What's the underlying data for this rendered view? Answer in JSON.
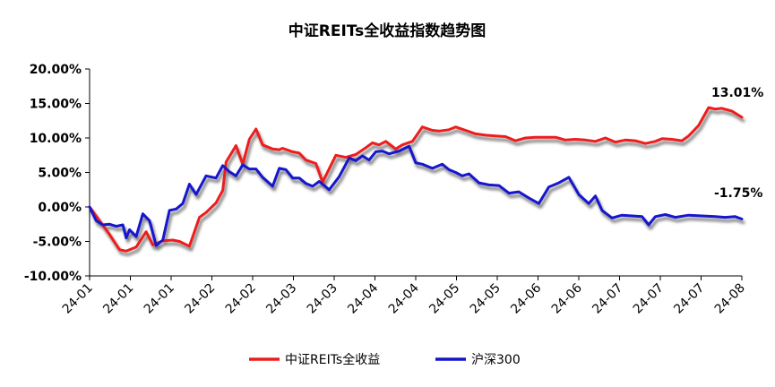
{
  "chart_data": {
    "type": "line",
    "title": "中证REITs全收益指数趋势图",
    "xlabel": "",
    "ylabel": "",
    "ylim": [
      -10,
      20
    ],
    "yticks": [
      "20.00%",
      "15.00%",
      "10.00%",
      "5.00%",
      "0.00%",
      "-5.00%",
      "-10.00%"
    ],
    "xticks": [
      "24-01",
      "24-01",
      "24-01",
      "24-02",
      "24-02",
      "24-03",
      "24-03",
      "24-04",
      "24-04",
      "24-05",
      "24-05",
      "24-06",
      "24-06",
      "24-07",
      "24-07",
      "24-07",
      "24-08"
    ],
    "grid": false,
    "legend_position": "bottom",
    "end_labels": [
      "13.01%",
      "-1.75%"
    ],
    "series": [
      {
        "name": "中证REITs全收益",
        "color": "#ee1c1c",
        "x": [
          0,
          3,
          6,
          9,
          11,
          14,
          17,
          19,
          22,
          25,
          27,
          30,
          33,
          35,
          38,
          40,
          41,
          44,
          46,
          48,
          50,
          52,
          55,
          57,
          58,
          61,
          63,
          65,
          68,
          70,
          74,
          77,
          80,
          83,
          85,
          87,
          89,
          92,
          94,
          97,
          100,
          103,
          105,
          108,
          110,
          113,
          116,
          119,
          122,
          125,
          128,
          131,
          134,
          137,
          140,
          143,
          146,
          149,
          152,
          155,
          158,
          161,
          164,
          167,
          170,
          172,
          175,
          178,
          180,
          183,
          186,
          188,
          190,
          193,
          196
        ],
        "values": [
          0,
          -2.0,
          -4.0,
          -6.2,
          -6.4,
          -5.8,
          -3.6,
          -5.5,
          -4.9,
          -4.8,
          -5.0,
          -5.7,
          -1.5,
          -0.8,
          0.6,
          2.4,
          6.5,
          8.9,
          6.2,
          9.8,
          11.3,
          9.0,
          8.4,
          8.3,
          8.5,
          8.0,
          7.8,
          6.8,
          6.3,
          3.6,
          7.5,
          7.2,
          7.6,
          8.6,
          9.3,
          9.0,
          9.5,
          8.4,
          9.0,
          9.5,
          11.6,
          11.1,
          11.0,
          11.2,
          11.6,
          11.1,
          10.6,
          10.4,
          10.3,
          10.2,
          9.6,
          10.0,
          10.1,
          10.1,
          10.1,
          9.7,
          9.8,
          9.7,
          9.5,
          10.0,
          9.4,
          9.7,
          9.6,
          9.2,
          9.5,
          9.9,
          9.8,
          9.6,
          10.3,
          11.8,
          14.4,
          14.2,
          14.3,
          13.9,
          13.0
        ]
      },
      {
        "name": "沪深300",
        "color": "#1414cc",
        "x": [
          0,
          2,
          4,
          6,
          8,
          10,
          11,
          12,
          14,
          16,
          18,
          20,
          22,
          24,
          26,
          28,
          30,
          32,
          35,
          38,
          40,
          42,
          44,
          46,
          48,
          50,
          52,
          55,
          57,
          59,
          61,
          63,
          65,
          67,
          69,
          72,
          75,
          78,
          80,
          82,
          84,
          86,
          88,
          90,
          93,
          96,
          98,
          100,
          103,
          106,
          108,
          110,
          112,
          114,
          117,
          120,
          123,
          126,
          129,
          132,
          135,
          138,
          141,
          144,
          147,
          150,
          152,
          154,
          157,
          160,
          163,
          166,
          168,
          170,
          173,
          176,
          180,
          184,
          188,
          191,
          194,
          196
        ],
        "values": [
          0,
          -2.0,
          -2.6,
          -2.5,
          -2.8,
          -2.6,
          -4.5,
          -3.3,
          -4.3,
          -1.0,
          -2.0,
          -5.6,
          -4.8,
          -0.5,
          -0.3,
          0.5,
          3.3,
          1.8,
          4.5,
          4.2,
          6.0,
          5.1,
          4.5,
          6.1,
          5.5,
          5.5,
          4.3,
          3.0,
          5.6,
          5.4,
          4.2,
          4.2,
          3.4,
          3.0,
          3.7,
          2.5,
          4.4,
          7.1,
          6.7,
          7.4,
          6.8,
          8.0,
          8.1,
          7.7,
          8.1,
          8.8,
          6.4,
          6.2,
          5.6,
          6.2,
          5.4,
          5.0,
          4.5,
          4.8,
          3.5,
          3.2,
          3.1,
          2.0,
          2.2,
          1.3,
          0.5,
          2.9,
          3.5,
          4.3,
          1.8,
          0.5,
          1.6,
          -0.5,
          -1.6,
          -1.2,
          -1.3,
          -1.4,
          -2.6,
          -1.4,
          -1.1,
          -1.5,
          -1.2,
          -1.3,
          -1.4,
          -1.5,
          -1.4,
          -1.75
        ]
      }
    ]
  }
}
